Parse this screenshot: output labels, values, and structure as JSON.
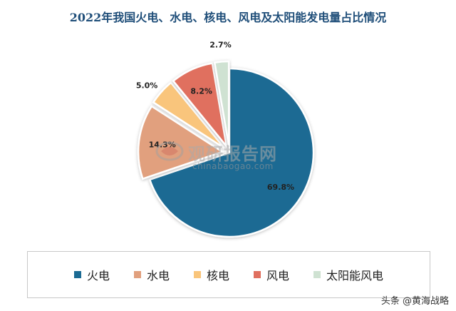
{
  "chart_data": {
    "type": "pie",
    "title": "2022年我国火电、水电、核电、风电及太阳能发电量占比情况",
    "categories": [
      "火电",
      "水电",
      "核电",
      "风电",
      "太阳能风电"
    ],
    "values": [
      69.8,
      14.3,
      5.0,
      8.2,
      2.7
    ],
    "labels": [
      "69.8%",
      "14.3%",
      "5.0%",
      "8.2%",
      "2.7%"
    ],
    "colors": [
      "#1b6a93",
      "#e1a07e",
      "#f9c57b",
      "#e0705f",
      "#cfe2d2"
    ],
    "legend_position": "bottom"
  },
  "watermark": {
    "cn": "观研报告网",
    "en": "chinabaogao.com"
  },
  "footer": {
    "text": "头条 @黄海战略"
  }
}
